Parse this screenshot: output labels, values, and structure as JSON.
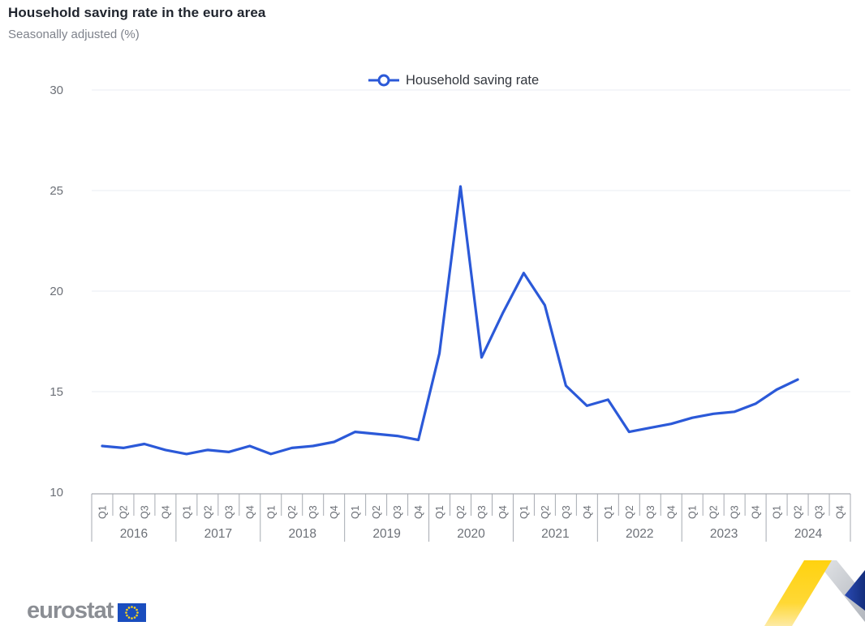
{
  "header": {
    "title": "Household saving rate in the euro area",
    "subtitle": "Seasonally adjusted (%)"
  },
  "legend": {
    "label": "Household saving rate"
  },
  "footer": {
    "logo_text": "eurostat"
  },
  "colors": {
    "line": "#2b59d8",
    "grid": "#e9ecf3",
    "axis": "#a6aab1",
    "tick_label": "#6c7077",
    "title": "#20252e",
    "subtitle": "#7e828b",
    "legend_text": "#33373e",
    "logo_gray": "#8b8e94",
    "eu_flag_blue": "#1a4dbe",
    "eu_star_yellow": "#ffd617",
    "ribbon_yellow": "#ffd20f",
    "ribbon_gray": "#c7cace",
    "ribbon_blue": "#1a3a9c"
  },
  "chart_data": {
    "type": "line",
    "title": "Household saving rate in the euro area",
    "subtitle": "Seasonally adjusted (%)",
    "xlabel": "",
    "ylabel": "",
    "ylim": [
      10,
      30
    ],
    "yticks": [
      10,
      15,
      20,
      25,
      30
    ],
    "grid": true,
    "legend_position": "top-center",
    "x_groups": [
      {
        "year": "2016",
        "quarters": [
          "Q1",
          "Q2",
          "Q3",
          "Q4"
        ]
      },
      {
        "year": "2017",
        "quarters": [
          "Q1",
          "Q2",
          "Q3",
          "Q4"
        ]
      },
      {
        "year": "2018",
        "quarters": [
          "Q1",
          "Q2",
          "Q3",
          "Q4"
        ]
      },
      {
        "year": "2019",
        "quarters": [
          "Q1",
          "Q2",
          "Q3",
          "Q4"
        ]
      },
      {
        "year": "2020",
        "quarters": [
          "Q1",
          "Q2",
          "Q3",
          "Q4"
        ]
      },
      {
        "year": "2021",
        "quarters": [
          "Q1",
          "Q2",
          "Q3",
          "Q4"
        ]
      },
      {
        "year": "2022",
        "quarters": [
          "Q1",
          "Q2",
          "Q3",
          "Q4"
        ]
      },
      {
        "year": "2023",
        "quarters": [
          "Q1",
          "Q2",
          "Q3",
          "Q4"
        ]
      },
      {
        "year": "2024",
        "quarters": [
          "Q1",
          "Q2",
          "Q3",
          "Q4"
        ]
      }
    ],
    "series": [
      {
        "name": "Household saving rate",
        "color": "#2b59d8",
        "values": [
          12.3,
          12.2,
          12.4,
          12.1,
          11.9,
          12.1,
          12.0,
          12.3,
          11.9,
          12.2,
          12.3,
          12.5,
          13.0,
          12.9,
          12.8,
          12.6,
          16.9,
          25.2,
          16.7,
          18.9,
          20.9,
          19.3,
          15.3,
          14.3,
          14.6,
          13.0,
          13.2,
          13.4,
          13.7,
          13.9,
          14.0,
          14.4,
          15.1,
          15.6,
          null,
          null
        ]
      }
    ]
  }
}
